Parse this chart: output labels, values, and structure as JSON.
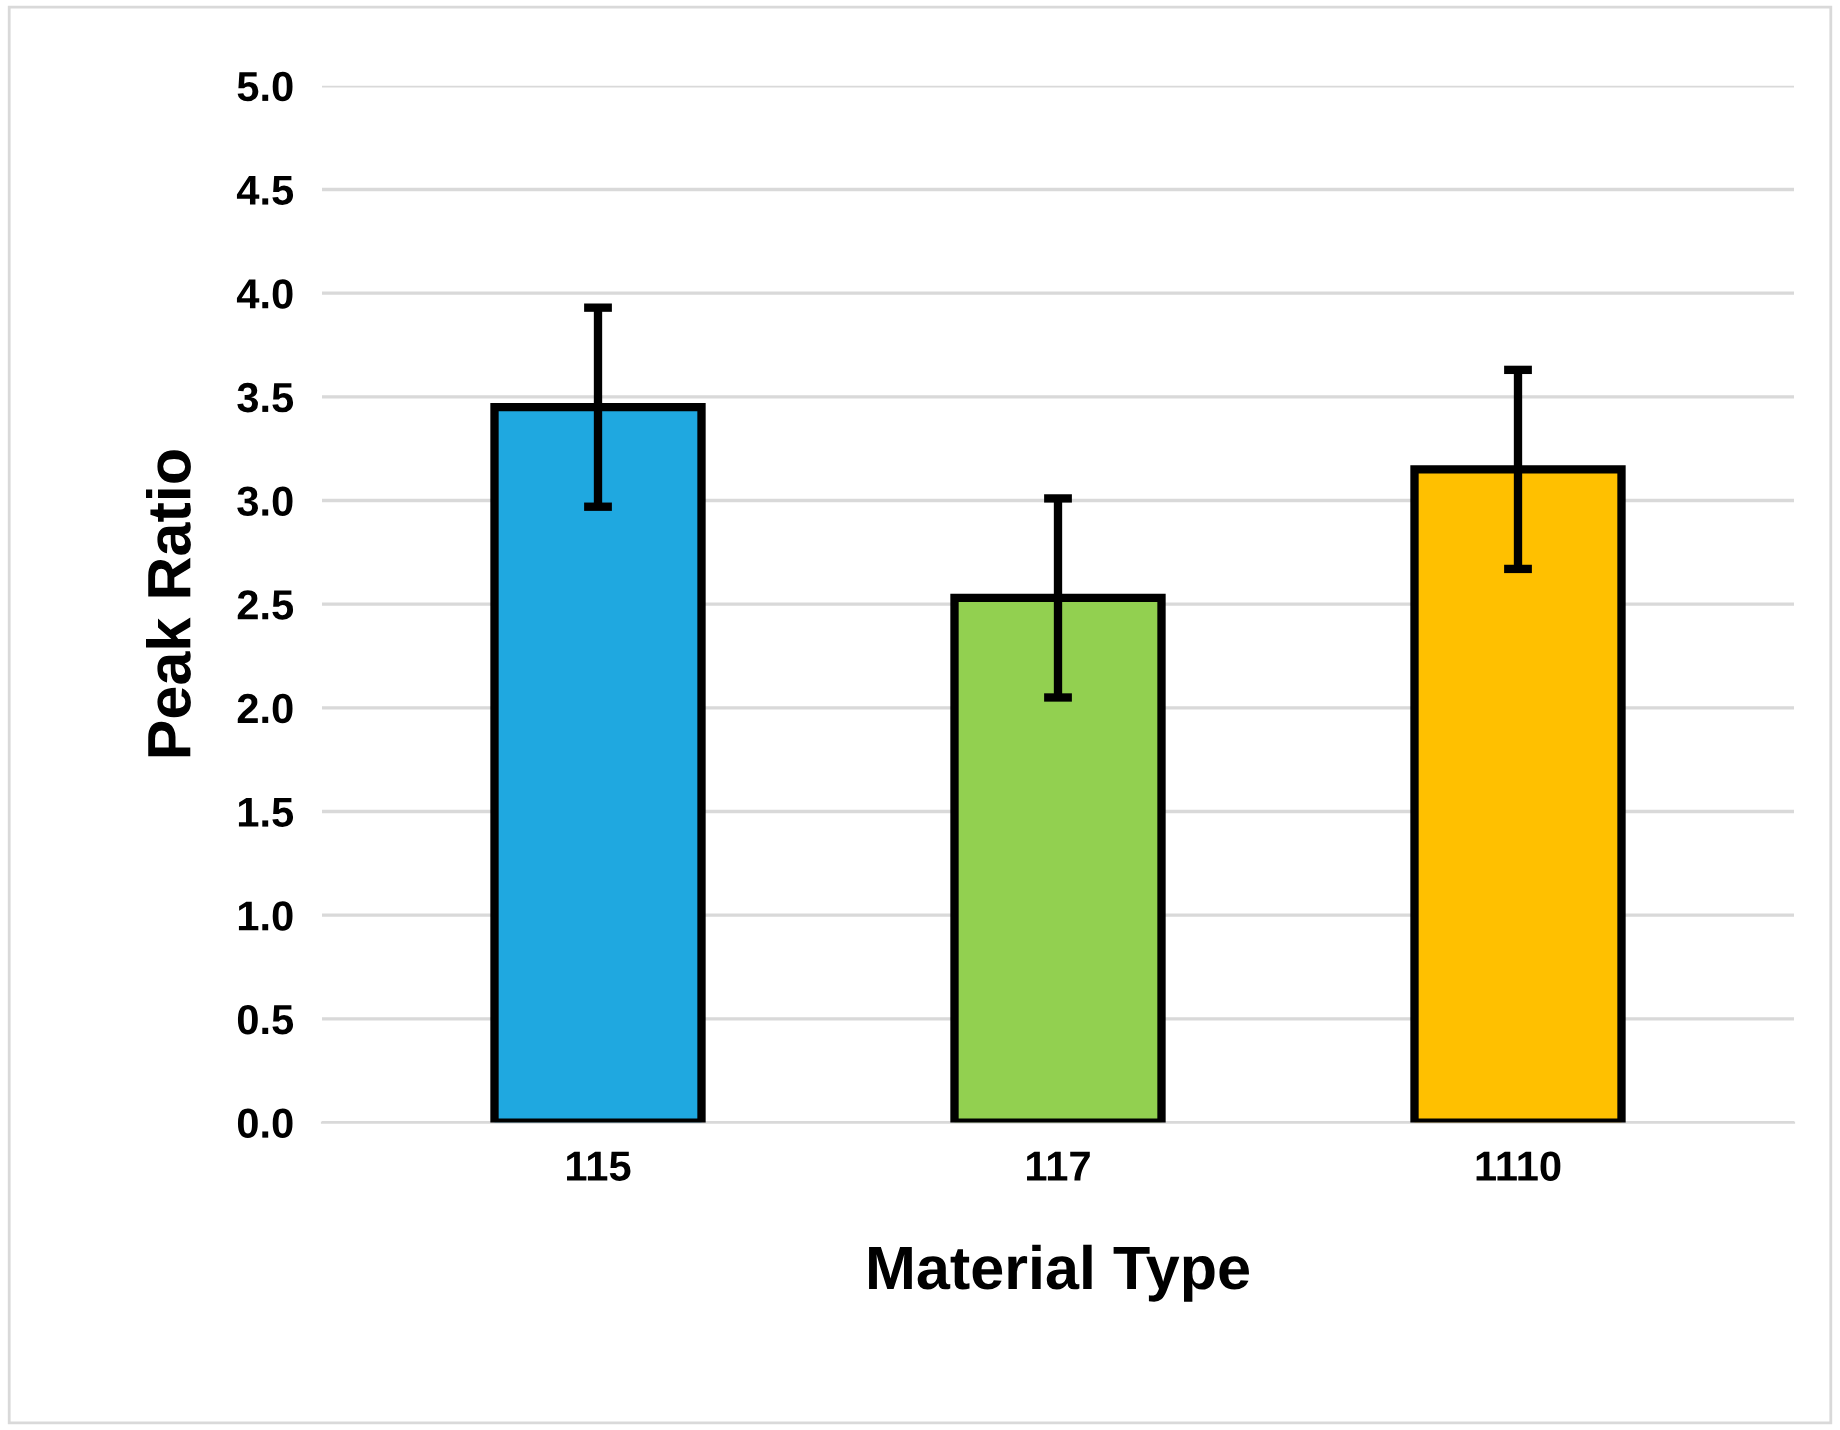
{
  "chart_data": {
    "type": "bar",
    "xlabel": "Material Type",
    "ylabel": "Peak Ratio",
    "categories": [
      "115",
      "117",
      "1110"
    ],
    "values": [
      3.45,
      2.53,
      3.15
    ],
    "colors": [
      "#1fa8e0",
      "#92d050",
      "#ffc000"
    ],
    "errors": [
      0.48,
      0.48,
      0.48
    ],
    "ylim": [
      0,
      5
    ],
    "yticks": [
      {
        "value": 0,
        "label": "0.0"
      },
      {
        "value": 0.5,
        "label": "0.5"
      },
      {
        "value": 1,
        "label": "1.0"
      },
      {
        "value": 1.5,
        "label": "1.5"
      },
      {
        "value": 2,
        "label": "2.0"
      },
      {
        "value": 2.5,
        "label": "2.5"
      },
      {
        "value": 3,
        "label": "3.0"
      },
      {
        "value": 3.5,
        "label": "3.5"
      },
      {
        "value": 4,
        "label": "4.0"
      },
      {
        "value": 4.5,
        "label": "4.5"
      },
      {
        "value": 5,
        "label": "5.0"
      }
    ],
    "grid": "y"
  }
}
